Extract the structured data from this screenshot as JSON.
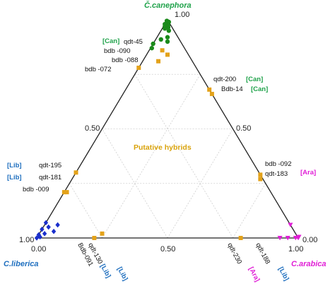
{
  "chart_data": {
    "type": "scatter",
    "subtype": "ternary",
    "axes": {
      "top": "Č.canephora",
      "left": "C.liberica",
      "right": "C.arabica",
      "ticks": [
        "0.00",
        "0.50",
        "1.00"
      ]
    },
    "grid": true,
    "region_label": "Putative hybrids",
    "colors": {
      "canephora": "#1a8a1a",
      "liberica": "#1a2fcc",
      "arabica": "#e01ed6",
      "hybrid": "#e3a21a",
      "tag_can": "#1fa24a",
      "tag_lib": "#1f6fbf",
      "tag_ara": "#e01ed6",
      "vertex_can": "#1fa24a",
      "vertex_lib": "#1f6fbf",
      "vertex_ara": "#e01ed6",
      "region": "#d9a20a"
    },
    "series": [
      {
        "group": "canephora",
        "marker": "circle",
        "points": [
          {
            "can": 0.99,
            "ara": 0.005
          },
          {
            "can": 0.985,
            "ara": 0.01
          },
          {
            "can": 0.98,
            "ara": 0.0
          },
          {
            "can": 0.975,
            "ara": 0.015
          },
          {
            "can": 0.97,
            "ara": 0.005
          },
          {
            "can": 0.995,
            "ara": 0.0
          },
          {
            "can": 0.965,
            "ara": 0.02
          },
          {
            "can": 0.96,
            "ara": 0.01
          },
          {
            "can": 0.99,
            "ara": 0.01
          },
          {
            "can": 0.95,
            "ara": 0.03
          },
          {
            "can": 0.92,
            "ara": 0.04
          },
          {
            "can": 0.9,
            "ara": 0.05
          },
          {
            "can": 0.91,
            "ara": 0.02
          },
          {
            "can": 0.89,
            "ara": 0.0
          },
          {
            "can": 0.87,
            "ara": 0.005
          }
        ]
      },
      {
        "group": "liberica",
        "marker": "diamond",
        "points": [
          {
            "can": 0.07,
            "ara": 0.0
          },
          {
            "can": 0.06,
            "ara": 0.05
          },
          {
            "can": 0.05,
            "ara": 0.02
          },
          {
            "can": 0.04,
            "ara": 0.0
          },
          {
            "can": 0.03,
            "ara": 0.05
          },
          {
            "can": 0.02,
            "ara": 0.02
          },
          {
            "can": 0.015,
            "ara": 0.0
          },
          {
            "can": 0.0,
            "ara": 0.0
          },
          {
            "can": 0.005,
            "ara": 0.01
          }
        ]
      },
      {
        "group": "arabica",
        "marker": "triangle-down",
        "points": [
          {
            "can": 0.06,
            "ara": 0.94
          },
          {
            "can": 0.0,
            "ara": 0.93
          },
          {
            "can": 0.0,
            "ara": 0.96
          },
          {
            "can": 0.0,
            "ara": 0.99
          },
          {
            "can": 0.005,
            "ara": 1.0
          },
          {
            "can": 0.0,
            "ara": 1.0
          }
        ]
      },
      {
        "group": "hybrid",
        "marker": "square",
        "points": [
          {
            "can": 0.86,
            "ara": 0.05
          },
          {
            "can": 0.84,
            "ara": 0.08
          },
          {
            "can": 0.81,
            "ara": 0.06
          },
          {
            "can": 0.78,
            "ara": 0.0
          },
          {
            "can": 0.68,
            "ara": 0.32
          },
          {
            "can": 0.66,
            "ara": 0.34
          },
          {
            "can": 0.3,
            "ara": 0.0
          },
          {
            "can": 0.21,
            "ara": 0.0
          },
          {
            "can": 0.21,
            "ara": 0.01
          },
          {
            "can": 0.29,
            "ara": 0.71
          },
          {
            "can": 0.27,
            "ara": 0.72
          },
          {
            "can": 0.0,
            "ara": 0.22
          },
          {
            "can": 0.02,
            "ara": 0.24
          },
          {
            "can": 0.0,
            "ara": 0.78
          }
        ]
      }
    ],
    "annotations": [
      {
        "text": "[Can]",
        "kind": "tag_can"
      },
      {
        "text": "qdt-45",
        "kind": "lbl"
      },
      {
        "text": "bdb -090",
        "kind": "lbl"
      },
      {
        "text": "bdb -088",
        "kind": "lbl"
      },
      {
        "text": "bdb -072",
        "kind": "lbl"
      },
      {
        "text": "qdt-200",
        "kind": "lbl"
      },
      {
        "text": "[Can]",
        "kind": "tag_can"
      },
      {
        "text": "Bdb-14",
        "kind": "lbl"
      },
      {
        "text": "[Can]",
        "kind": "tag_can"
      },
      {
        "text": "[Lib]",
        "kind": "tag_lib"
      },
      {
        "text": "qdt-195",
        "kind": "lbl"
      },
      {
        "text": "[Lib]",
        "kind": "tag_lib"
      },
      {
        "text": "qdt-181",
        "kind": "lbl"
      },
      {
        "text": "bdb -009",
        "kind": "lbl"
      },
      {
        "text": "bdb -092",
        "kind": "lbl"
      },
      {
        "text": "qdt-183",
        "kind": "lbl"
      },
      {
        "text": "[Ara]",
        "kind": "tag_ara"
      },
      {
        "text": "Bdb-091",
        "kind": "lbl"
      },
      {
        "text": "[Lib]",
        "kind": "tag_lib"
      },
      {
        "text": "qdt-130",
        "kind": "lbl"
      },
      {
        "text": "[Lib]",
        "kind": "tag_lib"
      },
      {
        "text": "qdt-230",
        "kind": "lbl"
      },
      {
        "text": "[Ara]",
        "kind": "tag_ara"
      },
      {
        "text": "qdt-188",
        "kind": "lbl"
      },
      {
        "text": "[Lib]",
        "kind": "tag_lib"
      }
    ]
  }
}
